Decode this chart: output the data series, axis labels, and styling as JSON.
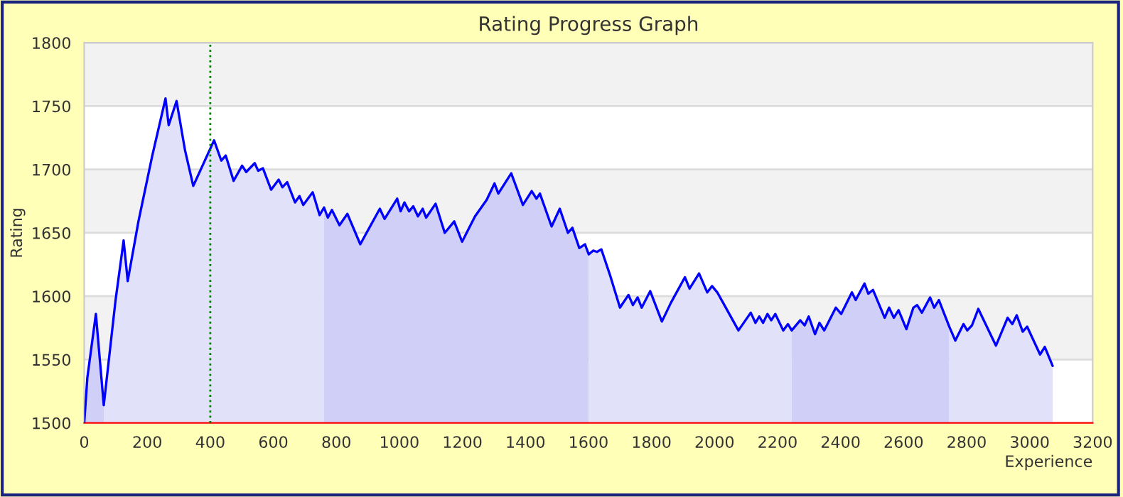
{
  "chart_data": {
    "type": "area",
    "title": "Rating Progress Graph",
    "xlabel": "Experience",
    "ylabel": "Rating",
    "xlim": [
      0,
      3200
    ],
    "xticks": [
      0,
      200,
      400,
      600,
      800,
      1000,
      1200,
      1400,
      1600,
      1800,
      2000,
      2200,
      2400,
      2600,
      2800,
      3000,
      3200
    ],
    "ylim": [
      1500,
      1800
    ],
    "yticks": [
      1500,
      1550,
      1600,
      1650,
      1700,
      1750,
      1800
    ],
    "grid": "y",
    "legend": false,
    "bands": [
      {
        "axis": "y",
        "from": 1550,
        "to": 1600,
        "color": "#f2f2f2"
      },
      {
        "axis": "y",
        "from": 1650,
        "to": 1700,
        "color": "#f2f2f2"
      },
      {
        "axis": "y",
        "from": 1750,
        "to": 1800,
        "color": "#f2f2f2"
      }
    ],
    "ref_lines": [
      {
        "axis": "x",
        "value": 400,
        "color": "#008000",
        "line_style": "dotted"
      }
    ],
    "series": [
      {
        "color": "#cfcff8",
        "x": [
          0,
          10,
          37,
          62
        ],
        "values": [
          1500,
          1536,
          1586,
          1514
        ]
      },
      {
        "color": "#e1e1fa",
        "x": [
          62,
          99,
          125,
          138,
          172,
          216,
          258,
          268,
          293,
          320,
          346,
          412,
          435,
          449,
          474,
          501,
          514,
          541,
          552,
          567,
          593,
          617,
          629,
          644,
          669,
          683,
          695,
          725,
          747,
          761
        ],
        "values": [
          1514,
          1596,
          1644,
          1612,
          1659,
          1711,
          1756,
          1735,
          1754,
          1715,
          1687,
          1723,
          1707,
          1711,
          1691,
          1703,
          1698,
          1705,
          1699,
          1701,
          1684,
          1692,
          1686,
          1690,
          1674,
          1679,
          1672,
          1682,
          1664,
          1670
        ]
      },
      {
        "color": "#cfcff8",
        "x": [
          761,
          773,
          786,
          810,
          835,
          876,
          938,
          953,
          993,
          1004,
          1016,
          1031,
          1044,
          1059,
          1074,
          1085,
          1115,
          1144,
          1174,
          1199,
          1240,
          1277,
          1302,
          1314,
          1355,
          1392,
          1420,
          1435,
          1446,
          1483,
          1509,
          1535,
          1549,
          1571,
          1589,
          1601
        ],
        "values": [
          1670,
          1662,
          1668,
          1656,
          1665,
          1641,
          1669,
          1661,
          1677,
          1667,
          1674,
          1667,
          1671,
          1663,
          1669,
          1662,
          1673,
          1650,
          1659,
          1643,
          1663,
          1676,
          1689,
          1681,
          1697,
          1672,
          1683,
          1677,
          1681,
          1655,
          1669,
          1650,
          1654,
          1638,
          1641,
          1633
        ]
      },
      {
        "color": "#e1e1fa",
        "x": [
          1601,
          1615,
          1627,
          1641,
          1668,
          1700,
          1727,
          1741,
          1756,
          1769,
          1796,
          1833,
          1862,
          1906,
          1921,
          1951,
          1977,
          1992,
          2009,
          2076,
          2115,
          2130,
          2142,
          2154,
          2168,
          2180,
          2193,
          2218,
          2233,
          2245
        ],
        "values": [
          1633,
          1636,
          1635,
          1637,
          1617,
          1591,
          1601,
          1593,
          1599,
          1591,
          1604,
          1580,
          1595,
          1615,
          1606,
          1618,
          1603,
          1608,
          1603,
          1573,
          1587,
          1579,
          1584,
          1579,
          1586,
          1581,
          1586,
          1573,
          1578,
          1573
        ]
      },
      {
        "color": "#cfcff8",
        "x": [
          2245,
          2272,
          2286,
          2299,
          2319,
          2333,
          2348,
          2385,
          2402,
          2436,
          2448,
          2476,
          2488,
          2503,
          2540,
          2554,
          2569,
          2584,
          2609,
          2631,
          2643,
          2658,
          2684,
          2697,
          2712,
          2745
        ],
        "values": [
          1573,
          1581,
          1577,
          1584,
          1570,
          1579,
          1573,
          1591,
          1586,
          1603,
          1597,
          1610,
          1602,
          1605,
          1583,
          1591,
          1583,
          1589,
          1574,
          1591,
          1593,
          1587,
          1599,
          1591,
          1597,
          1576
        ]
      },
      {
        "color": "#e1e1fa",
        "x": [
          2745,
          2764,
          2790,
          2802,
          2817,
          2837,
          2893,
          2930,
          2945,
          2959,
          2978,
          2992,
          3033,
          3048,
          3073
        ],
        "values": [
          1576,
          1565,
          1578,
          1573,
          1577,
          1590,
          1561,
          1583,
          1578,
          1585,
          1572,
          1576,
          1554,
          1560,
          1545
        ]
      },
      {
        "type": "line",
        "color": "#0000ff",
        "x": [
          0,
          10,
          37,
          62,
          99,
          125,
          138,
          172,
          216,
          258,
          268,
          293,
          320,
          346,
          412,
          435,
          449,
          474,
          501,
          514,
          541,
          552,
          567,
          593,
          617,
          629,
          644,
          669,
          683,
          695,
          725,
          747,
          761,
          773,
          786,
          810,
          835,
          876,
          938,
          953,
          993,
          1004,
          1016,
          1031,
          1044,
          1059,
          1074,
          1085,
          1115,
          1144,
          1174,
          1199,
          1240,
          1277,
          1302,
          1314,
          1355,
          1392,
          1420,
          1435,
          1446,
          1483,
          1509,
          1535,
          1549,
          1571,
          1589,
          1601,
          1615,
          1627,
          1641,
          1668,
          1700,
          1727,
          1741,
          1756,
          1769,
          1796,
          1833,
          1862,
          1906,
          1921,
          1951,
          1977,
          1992,
          2009,
          2076,
          2115,
          2130,
          2142,
          2154,
          2168,
          2180,
          2193,
          2218,
          2233,
          2245,
          2272,
          2286,
          2299,
          2319,
          2333,
          2348,
          2385,
          2402,
          2436,
          2448,
          2476,
          2488,
          2503,
          2540,
          2554,
          2569,
          2584,
          2609,
          2631,
          2643,
          2658,
          2684,
          2697,
          2712,
          2745,
          2764,
          2790,
          2802,
          2817,
          2837,
          2893,
          2930,
          2945,
          2959,
          2978,
          2992,
          3033,
          3048,
          3073
        ],
        "values": [
          1500,
          1536,
          1586,
          1514,
          1596,
          1644,
          1612,
          1659,
          1711,
          1756,
          1735,
          1754,
          1715,
          1687,
          1723,
          1707,
          1711,
          1691,
          1703,
          1698,
          1705,
          1699,
          1701,
          1684,
          1692,
          1686,
          1690,
          1674,
          1679,
          1672,
          1682,
          1664,
          1670,
          1662,
          1668,
          1656,
          1665,
          1641,
          1669,
          1661,
          1677,
          1667,
          1674,
          1667,
          1671,
          1663,
          1669,
          1662,
          1673,
          1650,
          1659,
          1643,
          1663,
          1676,
          1689,
          1681,
          1697,
          1672,
          1683,
          1677,
          1681,
          1655,
          1669,
          1650,
          1654,
          1638,
          1641,
          1633,
          1636,
          1635,
          1637,
          1617,
          1591,
          1601,
          1593,
          1599,
          1591,
          1604,
          1580,
          1595,
          1615,
          1606,
          1618,
          1603,
          1608,
          1603,
          1573,
          1587,
          1579,
          1584,
          1579,
          1586,
          1581,
          1586,
          1573,
          1578,
          1573,
          1581,
          1577,
          1584,
          1570,
          1579,
          1573,
          1591,
          1586,
          1603,
          1597,
          1610,
          1602,
          1605,
          1583,
          1591,
          1583,
          1589,
          1574,
          1591,
          1593,
          1587,
          1599,
          1591,
          1597,
          1576,
          1565,
          1578,
          1573,
          1577,
          1590,
          1561,
          1583,
          1578,
          1585,
          1572,
          1576,
          1554,
          1560,
          1545
        ]
      }
    ]
  }
}
